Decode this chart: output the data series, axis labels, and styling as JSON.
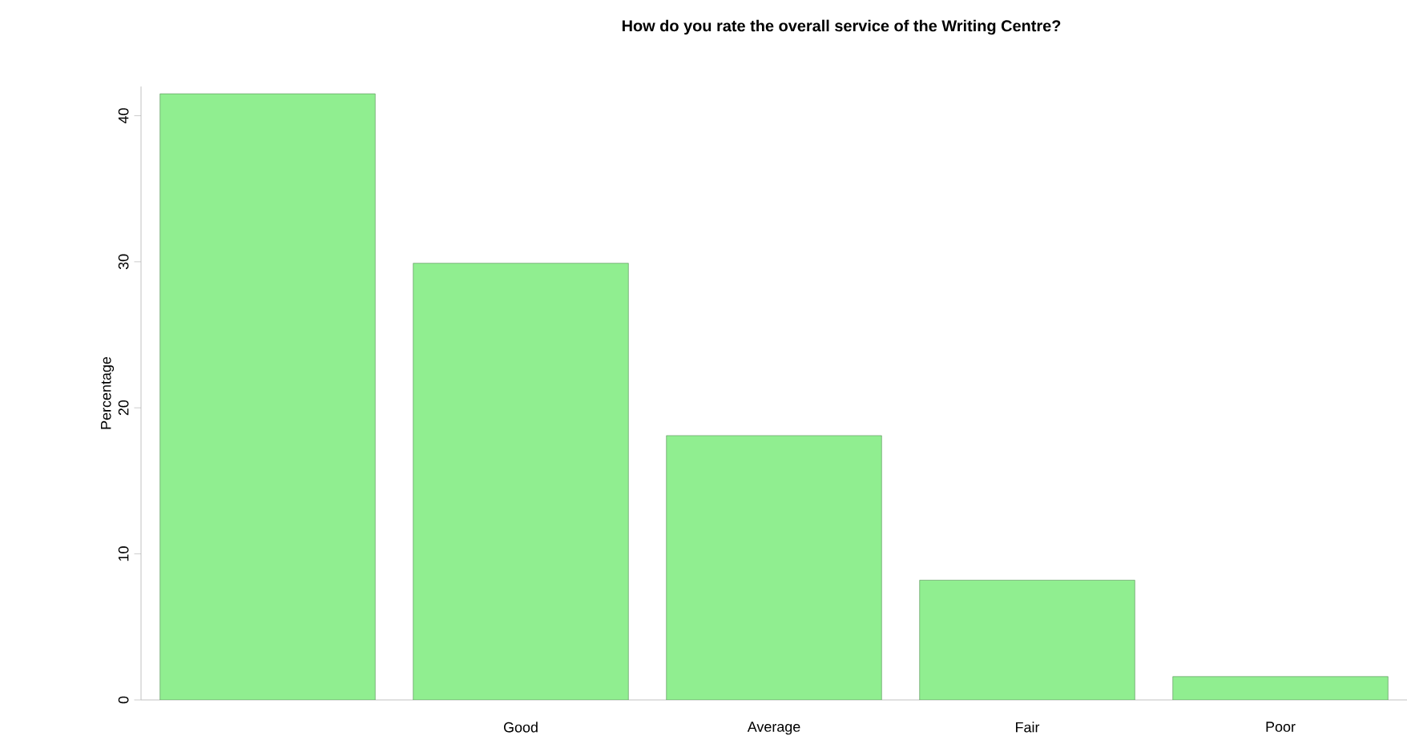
{
  "chart_data": {
    "type": "bar",
    "title": "How do you rate the overall service of the Writing Centre?",
    "ylabel": "Percentage",
    "categories": [
      null,
      "Good",
      "Average",
      "Fair",
      "Poor"
    ],
    "values": [
      41.5,
      29.9,
      18.1,
      8.2,
      1.6
    ],
    "color": "#90ee90",
    "ylim": [
      0,
      42
    ],
    "yticks": [
      0,
      10,
      20,
      30,
      40
    ],
    "grid": false
  }
}
